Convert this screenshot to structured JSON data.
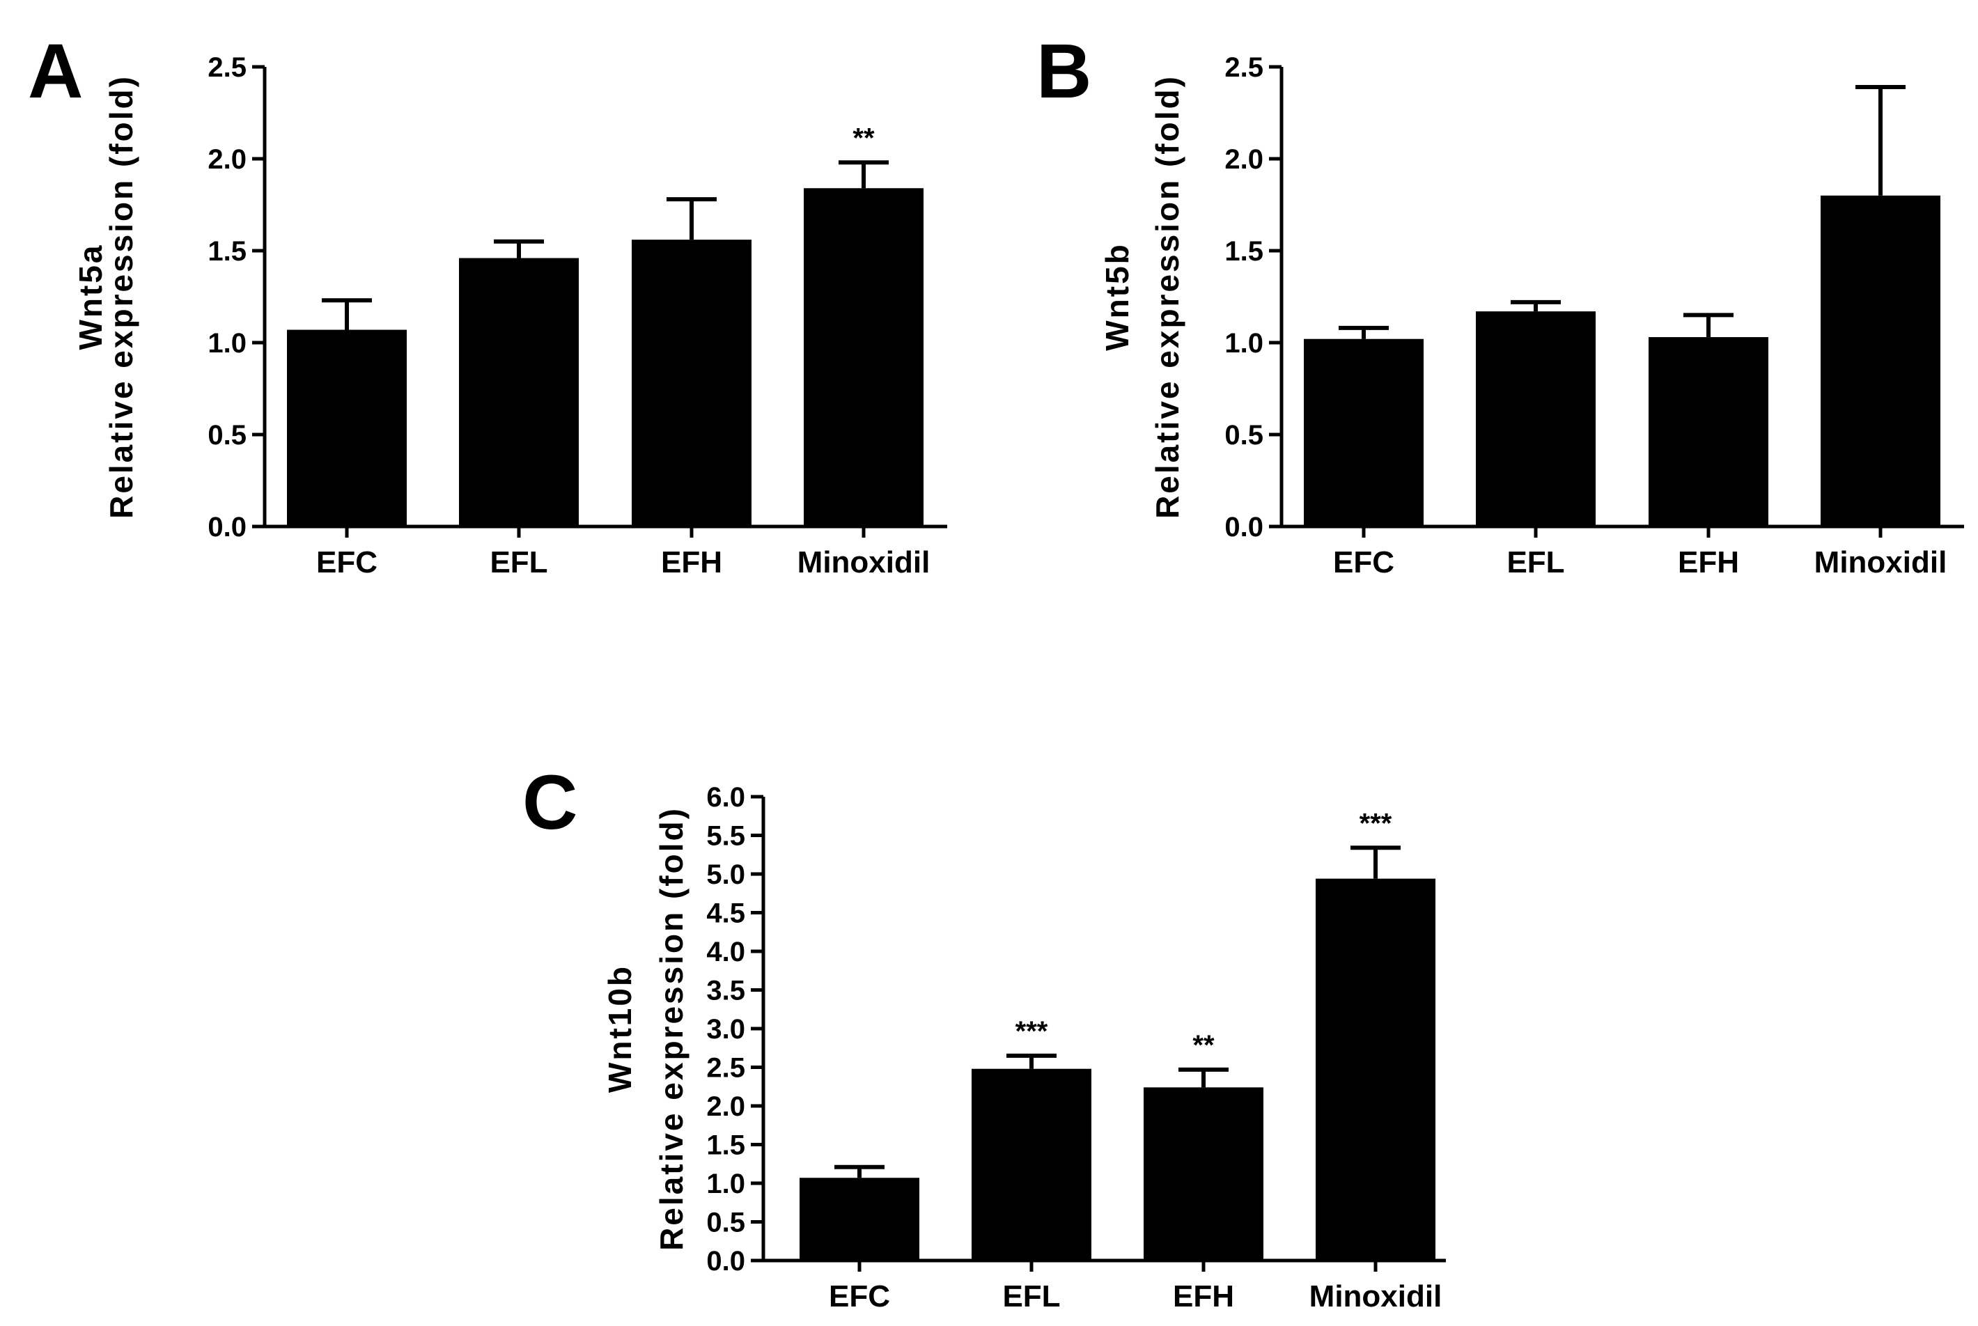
{
  "chart_data": [
    {
      "type": "bar",
      "panel": "A",
      "title": "",
      "ylabel_gene": "Wnt5a",
      "ylabel": "Relative expression (fold)",
      "xlabel": "",
      "categories": [
        "EFC",
        "EFL",
        "EFH",
        "Minoxidil"
      ],
      "values": [
        1.07,
        1.46,
        1.56,
        1.84
      ],
      "errors": [
        0.16,
        0.09,
        0.22,
        0.14
      ],
      "significance": [
        "",
        "",
        "",
        "**"
      ],
      "ylim": [
        0,
        2.5
      ],
      "yticks": [
        "0.0",
        "0.5",
        "1.0",
        "1.5",
        "2.0",
        "2.5"
      ]
    },
    {
      "type": "bar",
      "panel": "B",
      "title": "",
      "ylabel_gene": "Wnt5b",
      "ylabel": "Relative expression (fold)",
      "xlabel": "",
      "categories": [
        "EFC",
        "EFL",
        "EFH",
        "Minoxidil"
      ],
      "values": [
        1.02,
        1.17,
        1.03,
        1.8
      ],
      "errors": [
        0.06,
        0.05,
        0.12,
        0.59
      ],
      "significance": [
        "",
        "",
        "",
        ""
      ],
      "ylim": [
        0,
        2.5
      ],
      "yticks": [
        "0.0",
        "0.5",
        "1.0",
        "1.5",
        "2.0",
        "2.5"
      ]
    },
    {
      "type": "bar",
      "panel": "C",
      "title": "",
      "ylabel_gene": "Wnt10b",
      "ylabel": "Relative expression (fold)",
      "xlabel": "",
      "categories": [
        "EFC",
        "EFL",
        "EFH",
        "Minoxidil"
      ],
      "values": [
        1.07,
        2.48,
        2.24,
        4.94
      ],
      "errors": [
        0.14,
        0.17,
        0.23,
        0.4
      ],
      "significance": [
        "",
        "***",
        "**",
        "***"
      ],
      "ylim": [
        0,
        6.0
      ],
      "yticks": [
        "0.0",
        "0.5",
        "1.0",
        "1.5",
        "2.0",
        "2.5",
        "3.0",
        "3.5",
        "4.0",
        "4.5",
        "5.0",
        "5.5",
        "6.0"
      ]
    }
  ]
}
